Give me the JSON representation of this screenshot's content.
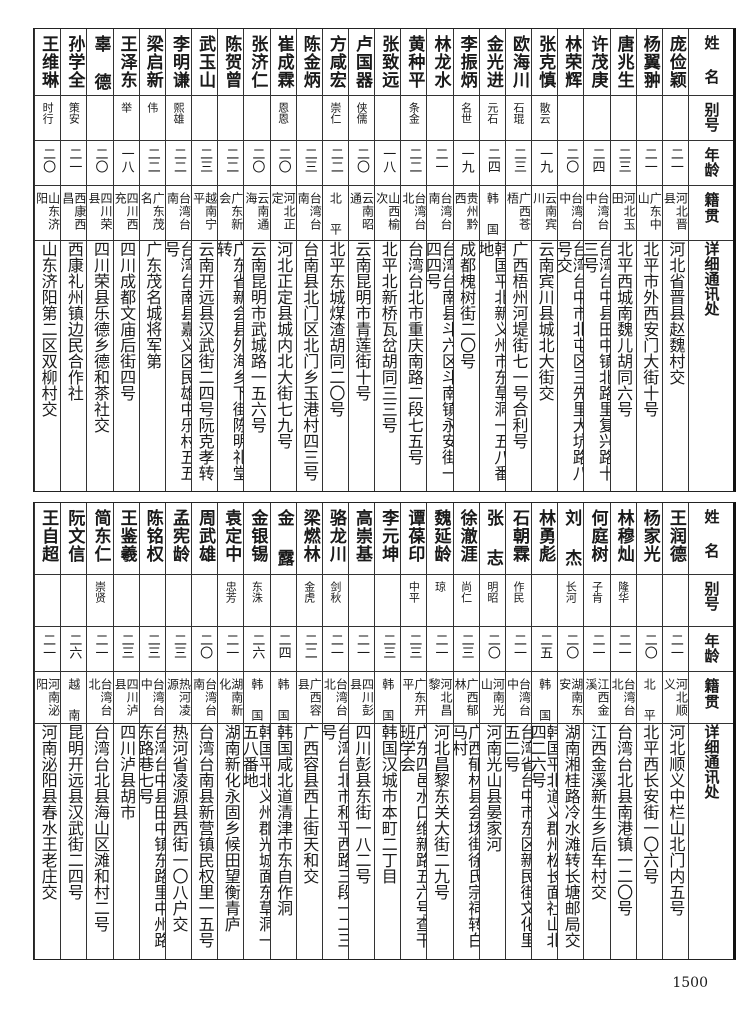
{
  "headers": {
    "name": "姓名",
    "alias": "别号",
    "age": "年龄",
    "origin": "籍贯",
    "address": "详细通讯处"
  },
  "tables": [
    {
      "rows": [
        {
          "name": "庞俭颖",
          "alias": "",
          "age": "二一",
          "origin": "河北晋县",
          "address": "河北省晋县赵魏村交"
        },
        {
          "name": "杨翼翀",
          "alias": "",
          "age": "二一",
          "origin": "广东中山",
          "address": "北平市外西安门大街十号"
        },
        {
          "name": "唐兆生",
          "alias": "",
          "age": "二三",
          "origin": "河北玉田",
          "address": "北平西城南魏儿胡同六号"
        },
        {
          "name": "许茂庚",
          "alias": "",
          "age": "二四",
          "origin": "台湾台中",
          "address": "台湾台中县田中镇北路里复兴路十三号"
        },
        {
          "name": "林荣辉",
          "alias": "",
          "age": "二〇",
          "origin": "台湾台中",
          "address": "台湾台中市北屯区三先里大坑路八号交"
        },
        {
          "name": "张克慎",
          "alias": "散云",
          "age": "一九",
          "origin": "云南宾川",
          "address": "云南宾川县城北大街交"
        },
        {
          "name": "欧海川",
          "alias": "石琨",
          "age": "二三",
          "origin": "广西苍梧",
          "address": "广西梧州河堤街七一号合利号"
        },
        {
          "name": "金光进",
          "alias": "元石",
          "age": "二四",
          "origin": "韩国",
          "address": "韩国平北新义州市东草洞一五八番地"
        },
        {
          "name": "李振炳",
          "alias": "名世",
          "age": "一九",
          "origin": "贵州黔西",
          "address": "成都槐树街二〇号"
        },
        {
          "name": "林龙水",
          "alias": "",
          "age": "二一",
          "origin": "台湾台南",
          "address": "台湾台南县斗六区斗南镇永安街一四四号"
        },
        {
          "name": "黄种平",
          "alias": "条金",
          "age": "二二",
          "origin": "台湾台北",
          "address": "台湾台北市重庆南路二段七五号"
        },
        {
          "name": "张致远",
          "alias": "",
          "age": "一八",
          "origin": "山西榆次",
          "address": "北平北新桥瓦岔胡同三三号"
        },
        {
          "name": "卢国器",
          "alias": "侠儒",
          "age": "二〇",
          "origin": "云南昭通",
          "address": "云南昆明市青莲街十号"
        },
        {
          "name": "方咸宏",
          "alias": "崇仁",
          "age": "二二",
          "origin": "北平",
          "address": "北平东城煤渣胡同二〇号"
        },
        {
          "name": "陈金炳",
          "alias": "",
          "age": "二三",
          "origin": "台湾台南",
          "address": "台南县北门区北门乡玉港村四三号"
        },
        {
          "name": "崔成霖",
          "alias": "恩恩",
          "age": "二〇",
          "origin": "河北正定",
          "address": "河北正定县城内北大街七九号"
        },
        {
          "name": "张济仁",
          "alias": "",
          "age": "二〇",
          "origin": "云南通海",
          "address": "云南昆明市武城路一五六号"
        },
        {
          "name": "陈贺曾",
          "alias": "",
          "age": "二二",
          "origin": "广东新会",
          "address": "广东省新会县外海乡下街陈明礼堂转"
        },
        {
          "name": "武玉山",
          "alias": "",
          "age": "二三",
          "origin": "越南宁平",
          "address": "云南开远县汉武街二四号阮克孝转"
        },
        {
          "name": "李明谦",
          "alias": "熙雄",
          "age": "二二",
          "origin": "台湾台南",
          "address": "台湾台南县嘉义区民雄中乐村五五号"
        },
        {
          "name": "梁启新",
          "alias": "伟",
          "age": "二二",
          "origin": "广东茂名",
          "address": "广东茂名城将军第"
        },
        {
          "name": "王泽东",
          "alias": "举",
          "age": "一八",
          "origin": "四川西充",
          "address": "四川成都文庙后街四号"
        },
        {
          "name": "辜德",
          "alias": "",
          "age": "二〇",
          "origin": "四川荣县",
          "address": "四川荣县乐德乡德和茶社交"
        },
        {
          "name": "孙学全",
          "alias": "策安",
          "age": "二一",
          "origin": "西康西昌",
          "address": "西康礼州镇边民合作社"
        },
        {
          "name": "王维琳",
          "alias": "时行",
          "age": "二〇",
          "origin": "山东济阳",
          "address": "山东济阳第二区双柳村交"
        }
      ]
    },
    {
      "rows": [
        {
          "name": "王润德",
          "alias": "",
          "age": "二一",
          "origin": "河北顺义",
          "address": "河北顺义中栏山北门内五号"
        },
        {
          "name": "杨家光",
          "alias": "",
          "age": "二〇",
          "origin": "北平",
          "address": "北平西长安街一〇六号"
        },
        {
          "name": "林穆灿",
          "alias": "隆华",
          "age": "二一",
          "origin": "台湾台北",
          "address": "台湾台北县南港镇一二〇号"
        },
        {
          "name": "何庭树",
          "alias": "子肯",
          "age": "二一",
          "origin": "江西金溪",
          "address": "江西金溪新生乡后车村交"
        },
        {
          "name": "刘杰",
          "alias": "长河",
          "age": "二〇",
          "origin": "湖南东安",
          "address": "湖南湘桂路冷水滩转长塘邮局交"
        },
        {
          "name": "林勇彪",
          "alias": "",
          "age": "二五",
          "origin": "韩国",
          "address": "韩国平北道义郡州松长面社山北四二六号"
        },
        {
          "name": "石朝霖",
          "alias": "作民",
          "age": "二一",
          "origin": "台湾台中",
          "address": "台湾省台中市东区新民街文化里五二号"
        },
        {
          "name": "张志",
          "alias": "明昭",
          "age": "二〇",
          "origin": "河南光山",
          "address": "河南光山县晏家河"
        },
        {
          "name": "徐澈涯",
          "alias": "尚仁",
          "age": "二三",
          "origin": "广西郁林",
          "address": "广西郁林县会场街徐氏宗祠转白马村"
        },
        {
          "name": "魏延龄",
          "alias": "琼",
          "age": "二一",
          "origin": "河北昌黎",
          "address": "河北昌黎东关大街二九号"
        },
        {
          "name": "谭葆印",
          "alias": "中平",
          "age": "二三",
          "origin": "广东开平",
          "address": "广东四邑水口维新路五六号查干班学会"
        },
        {
          "name": "李元坤",
          "alias": "",
          "age": "二三",
          "origin": "韩国",
          "address": "韩国汉城市本町二丁目"
        },
        {
          "name": "高崇基",
          "alias": "",
          "age": "二一",
          "origin": "四川彭县",
          "address": "四川彭县东街一八二号"
        },
        {
          "name": "骆龙川",
          "alias": "剑秋",
          "age": "二一",
          "origin": "台湾台北",
          "address": "台湾台北市和平西路三段一二三号"
        },
        {
          "name": "梁燃林",
          "alias": "金虎",
          "age": "二二",
          "origin": "广西容县",
          "address": "广西容县西上街天和交"
        },
        {
          "name": "金露",
          "alias": "",
          "age": "二四",
          "origin": "韩国",
          "address": "韩国咸北道清津市东自作洞"
        },
        {
          "name": "金银锡",
          "alias": "东洙",
          "age": "二六",
          "origin": "韩国",
          "address": "韩国平北义州郡光城面东草洞一五八番地"
        },
        {
          "name": "袁定中",
          "alias": "忠芳",
          "age": "二一",
          "origin": "湖南新化",
          "address": "湖南新化永固乡候田望衡青庐"
        },
        {
          "name": "周武雄",
          "alias": "",
          "age": "二〇",
          "origin": "台湾台南",
          "address": "台湾台南县新营镇民权里一五号"
        },
        {
          "name": "孟宪龄",
          "alias": "",
          "age": "二三",
          "origin": "热河凌源",
          "address": "热河省凌源县西街一〇八户交"
        },
        {
          "name": "陈铭权",
          "alias": "",
          "age": "二三",
          "origin": "台湾台中",
          "address": "台湾台中县田中镇东路里中州路东路巷七号"
        },
        {
          "name": "王鉴羲",
          "alias": "",
          "age": "二三",
          "origin": "四川泸县",
          "address": "四川泸县胡市"
        },
        {
          "name": "简东仁",
          "alias": "崇贤",
          "age": "二一",
          "origin": "台湾台北",
          "address": "台湾台北县海山区滩和村二号"
        },
        {
          "name": "阮文信",
          "alias": "",
          "age": "二六",
          "origin": "越南",
          "address": "昆明开远县汉武街二四号"
        },
        {
          "name": "王自超",
          "alias": "",
          "age": "二一",
          "origin": "河南泌阳",
          "address": "河南泌阳县春水王老庄交"
        }
      ]
    }
  ],
  "page_number": "1500"
}
